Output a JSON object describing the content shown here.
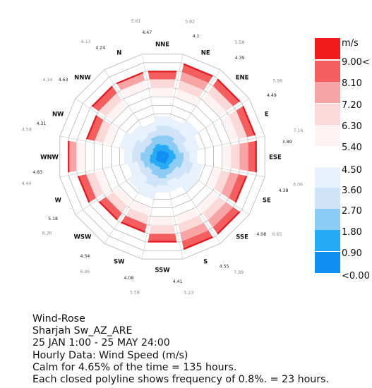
{
  "chart_data": {
    "type": "wind-rose",
    "directions": [
      "NE",
      "ENE",
      "E",
      "ESE",
      "SE",
      "SSE",
      "S",
      "SSW",
      "SW",
      "WSW",
      "W",
      "WNW",
      "NW",
      "NNW",
      "N",
      "NNE"
    ],
    "inner_labels": [
      "4.1",
      "4.39",
      "4.49",
      "3.89",
      "4.38",
      "4.08",
      "4.55",
      "4.41",
      "4.08",
      "4.34",
      "5.18",
      "4.83",
      "4.31",
      "4.63",
      "4.24",
      "4.47"
    ],
    "outer_labels": [
      "5.82",
      "5.58",
      "5.96",
      "7.16",
      "6.06",
      "6.65",
      "7.89",
      "5.23",
      "5.58",
      "6.06",
      "8.26",
      "4.44",
      "4.58",
      "4.34",
      "6.13",
      "5.61"
    ],
    "band_start_ring": [
      7,
      8,
      8,
      7,
      6,
      7,
      7,
      7,
      6,
      6,
      7,
      9,
      6,
      7,
      8,
      7
    ],
    "band_end_ring": [
      11,
      11,
      11,
      11,
      10,
      11,
      11,
      10,
      9,
      9,
      10,
      11,
      9,
      10,
      10,
      10
    ],
    "legend": {
      "unit": "m/s",
      "labels": [
        "9.00<",
        "8.10",
        "7.20",
        "6.30",
        "5.40",
        "4.50",
        "3.60",
        "2.70",
        "1.80",
        "0.90",
        "<0.00"
      ],
      "warm_colors": [
        "#f01b1b",
        "#f55e5e",
        "#f9a4a4",
        "#fcd9d9",
        "#fef2f2"
      ],
      "cool_colors": [
        "#e8f2fc",
        "#cfe4f8",
        "#8ccbf4",
        "#25abf5",
        "#0f8ff3"
      ]
    },
    "calm_percent": 4.65,
    "calm_hours": 135,
    "ring_frequency_percent": 0.8,
    "ring_frequency_hours": 23
  },
  "info": {
    "line1": "Wind-Rose",
    "line2": "Sharjah Sw_AZ_ARE",
    "line3": "25 JAN 1:00 - 25 MAY 24:00",
    "line4": "Hourly Data: Wind Speed (m/s)",
    "line5": "Calm for 4.65% of the time = 135 hours.",
    "line6": "Each closed polyline shows frequency of 0.8%. = 23 hours."
  }
}
